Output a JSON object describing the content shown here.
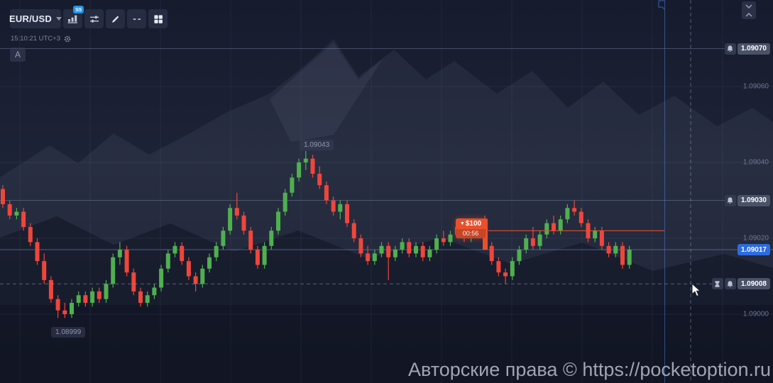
{
  "toolbar": {
    "symbol_selector": {
      "label": "EUR/USD"
    },
    "timeframe_badge": "S5",
    "clock": "15:10:21 UTC+3",
    "annotation_marker": "A"
  },
  "price_axis": {
    "ticks": [
      {
        "label": "1.09060",
        "value": 1.0906
      },
      {
        "label": "1.09040",
        "value": 1.0904
      },
      {
        "label": "1.09020",
        "value": 1.0902
      },
      {
        "label": "1.09000",
        "value": 1.09
      }
    ],
    "alerts": [
      {
        "label": "1.09070",
        "value": 1.0907
      },
      {
        "label": "1.09030",
        "value": 1.0903
      }
    ],
    "current_price": {
      "label": "1.09017",
      "value": 1.09017
    },
    "crosshair_price": {
      "label": "1.09008",
      "value": 1.09008
    }
  },
  "trade_marker": {
    "arrow": "▼",
    "amount": "$100",
    "countdown": "00:56",
    "direction": "down",
    "entry_price": 1.09022
  },
  "chart_labels": {
    "swing_high": {
      "label": "1.09043",
      "value": 1.09043
    },
    "swing_low": {
      "label": "1.08999",
      "value": 1.08999
    }
  },
  "watermark": "Авторские права © https://pocketoption.ru",
  "colors": {
    "bull": "#4fb04f",
    "bear": "#ef463b",
    "current_price_bg": "#2d6be0",
    "alert_box_bg": "#4a5267",
    "trade_orange": "#e8512c",
    "badge_blue": "#2492e8",
    "current_line": "#5f82c3",
    "grid": "#7d8caa"
  },
  "chart_data": {
    "type": "candlestick",
    "symbol": "EUR/USD",
    "timeframe": "S5",
    "pip": 1e-05,
    "base_price": 1.09,
    "y_axis": {
      "min": 1.08993,
      "max": 1.09078,
      "gridline_prices": [
        1.0906,
        1.0904,
        1.0902,
        1.09
      ]
    },
    "x_axis": {
      "visible_candles": 92
    },
    "annotations": {
      "swing_high": 1.09043,
      "swing_low": 1.08999,
      "current_price": 1.09017,
      "alert_lines": [
        1.0907,
        1.0903
      ],
      "crosshair_price": 1.09008,
      "trade_entry": 1.09022
    },
    "candles_ohlc_pips": [
      [
        33,
        34,
        28,
        29
      ],
      [
        29,
        30,
        25,
        26
      ],
      [
        26,
        28,
        25,
        27
      ],
      [
        27,
        28,
        22,
        23
      ],
      [
        23,
        24,
        18,
        19
      ],
      [
        19,
        20,
        13,
        14
      ],
      [
        14,
        16,
        8,
        9
      ],
      [
        9,
        10,
        3,
        4
      ],
      [
        4,
        5,
        -1,
        1
      ],
      [
        1,
        3,
        -1,
        0
      ],
      [
        0,
        4,
        -1,
        3
      ],
      [
        3,
        6,
        2,
        5
      ],
      [
        5,
        6,
        2,
        3
      ],
      [
        3,
        7,
        2,
        6
      ],
      [
        6,
        7,
        3,
        4
      ],
      [
        4,
        9,
        3,
        8
      ],
      [
        8,
        16,
        7,
        15
      ],
      [
        15,
        19,
        13,
        17
      ],
      [
        17,
        18,
        10,
        11
      ],
      [
        11,
        12,
        5,
        6
      ],
      [
        6,
        7,
        2,
        3
      ],
      [
        3,
        6,
        2,
        5
      ],
      [
        5,
        8,
        4,
        7
      ],
      [
        7,
        13,
        6,
        12
      ],
      [
        12,
        17,
        11,
        16
      ],
      [
        16,
        19,
        15,
        18
      ],
      [
        18,
        19,
        13,
        14
      ],
      [
        14,
        15,
        9,
        10
      ],
      [
        10,
        11,
        6,
        8
      ],
      [
        8,
        13,
        7,
        12
      ],
      [
        12,
        16,
        11,
        15
      ],
      [
        15,
        19,
        14,
        18
      ],
      [
        18,
        23,
        17,
        22
      ],
      [
        22,
        29,
        21,
        28
      ],
      [
        28,
        32,
        25,
        26
      ],
      [
        26,
        27,
        21,
        22
      ],
      [
        22,
        23,
        16,
        17
      ],
      [
        17,
        18,
        12,
        13
      ],
      [
        13,
        19,
        12,
        18
      ],
      [
        18,
        23,
        17,
        22
      ],
      [
        22,
        28,
        21,
        27
      ],
      [
        27,
        33,
        26,
        32
      ],
      [
        32,
        37,
        31,
        36
      ],
      [
        36,
        41,
        35,
        40
      ],
      [
        40,
        43,
        38,
        41
      ],
      [
        41,
        42,
        36,
        37
      ],
      [
        37,
        39,
        33,
        34
      ],
      [
        34,
        35,
        29,
        30
      ],
      [
        30,
        31,
        26,
        27
      ],
      [
        27,
        30,
        25,
        29
      ],
      [
        29,
        30,
        23,
        24
      ],
      [
        24,
        25,
        19,
        20
      ],
      [
        20,
        21,
        15,
        16
      ],
      [
        16,
        18,
        13,
        14
      ],
      [
        14,
        17,
        13,
        16
      ],
      [
        16,
        19,
        15,
        18
      ],
      [
        18,
        19,
        9,
        15
      ],
      [
        15,
        18,
        14,
        17
      ],
      [
        17,
        20,
        16,
        19
      ],
      [
        19,
        20,
        15,
        16
      ],
      [
        16,
        19,
        15,
        18
      ],
      [
        18,
        19,
        14,
        15
      ],
      [
        15,
        18,
        14,
        17
      ],
      [
        17,
        21,
        16,
        20
      ],
      [
        20,
        22,
        18,
        19
      ],
      [
        19,
        22,
        18,
        21
      ],
      [
        21,
        24,
        20,
        23
      ],
      [
        23,
        24,
        19,
        20
      ],
      [
        20,
        23,
        19,
        22
      ],
      [
        22,
        25,
        21,
        24
      ],
      [
        24,
        26,
        17,
        18
      ],
      [
        18,
        19,
        13,
        14
      ],
      [
        14,
        15,
        10,
        11
      ],
      [
        11,
        12,
        8,
        10
      ],
      [
        10,
        15,
        9,
        14
      ],
      [
        14,
        18,
        13,
        17
      ],
      [
        17,
        21,
        16,
        20
      ],
      [
        20,
        23,
        17,
        18
      ],
      [
        18,
        22,
        17,
        21
      ],
      [
        21,
        25,
        20,
        24
      ],
      [
        24,
        26,
        21,
        22
      ],
      [
        22,
        26,
        21,
        25
      ],
      [
        25,
        29,
        24,
        28
      ],
      [
        28,
        30,
        26,
        27
      ],
      [
        27,
        28,
        23,
        24
      ],
      [
        24,
        25,
        19,
        20
      ],
      [
        20,
        23,
        19,
        22
      ],
      [
        22,
        23,
        17,
        18
      ],
      [
        18,
        19,
        15,
        16
      ],
      [
        16,
        19,
        15,
        18
      ],
      [
        18,
        19,
        12,
        13
      ],
      [
        13,
        18,
        12,
        17
      ]
    ]
  }
}
